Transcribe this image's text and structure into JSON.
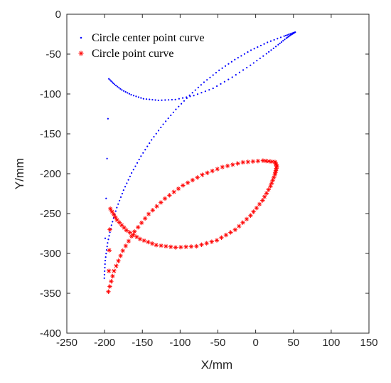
{
  "chart_data": {
    "type": "scatter",
    "title": "",
    "xlabel": "X/mm",
    "ylabel": "Y/mm",
    "xlim": [
      -250,
      150
    ],
    "ylim": [
      -400,
      0
    ],
    "y_inverted": true,
    "xticks": [
      -250,
      -200,
      -150,
      -100,
      -50,
      0,
      50,
      100,
      150
    ],
    "yticks": [
      0,
      -50,
      -100,
      -150,
      -200,
      -250,
      -300,
      -350,
      -400
    ],
    "xtick_labels": [
      "-250",
      "-200",
      "-150",
      "-100",
      "-50",
      "0",
      "50",
      "100",
      "150"
    ],
    "ytick_labels": [
      "0",
      "-50",
      "-100",
      "-150",
      "-200",
      "-250",
      "-300",
      "-350",
      "-400"
    ],
    "grid": false,
    "legend_position": "top-left",
    "series": [
      {
        "name": "Circle center point curve",
        "marker": "dot",
        "color": "#0000ff",
        "x": [
          -200.4,
          -199.2,
          -196.0,
          -190.9,
          -183.8,
          -174.9,
          -164.2,
          -151.8,
          -137.8,
          -122.4,
          -105.6,
          -87.5,
          -68.4,
          -48.4,
          -27.6,
          -6.2,
          15.6,
          37.7,
          48.0,
          52.4,
          48.1,
          40.6,
          29.9,
          14.3,
          -6.9,
          -31.0,
          -56.4,
          -81.9,
          -106.3,
          -128.8,
          -148.5,
          -164.8,
          -177.1,
          -186.9,
          -194.3
        ],
        "y": [
          -331.0,
          -309.0,
          -286.8,
          -264.6,
          -242.5,
          -220.6,
          -199.1,
          -178.0,
          -157.6,
          -138.0,
          -119.3,
          -101.7,
          -85.3,
          -70.3,
          -56.9,
          -45.1,
          -35.3,
          -27.4,
          -24.0,
          -22.5,
          -25.0,
          -30.0,
          -38.2,
          -49.5,
          -64.0,
          -79.0,
          -93.0,
          -102.0,
          -107.0,
          -108.0,
          -106.0,
          -101.0,
          -95.0,
          -88.0,
          -81.0
        ]
      },
      {
        "name": "Circle point curve",
        "marker": "asterisk",
        "color": "#ff0000",
        "x": [
          -195.0,
          -187.5,
          -175.9,
          -160.4,
          -141.7,
          -120.1,
          -96.3,
          -70.7,
          -44.0,
          -16.8,
          9.7,
          25.7,
          28.0,
          25.5,
          19.7,
          9.1,
          -6.8,
          -27.1,
          -51.4,
          -78.4,
          -106.0,
          -131.6,
          -153.1,
          -171.0,
          -183.5,
          -192.4
        ],
        "y": [
          -348.0,
          -322.0,
          -296.6,
          -272.6,
          -250.6,
          -231.2,
          -214.7,
          -201.4,
          -191.7,
          -185.7,
          -183.6,
          -185.3,
          -190.8,
          -201.0,
          -215.5,
          -233.5,
          -252.5,
          -270.3,
          -283.5,
          -291.0,
          -292.5,
          -289.5,
          -282.0,
          -271.0,
          -258.0,
          -244.0
        ]
      }
    ]
  }
}
